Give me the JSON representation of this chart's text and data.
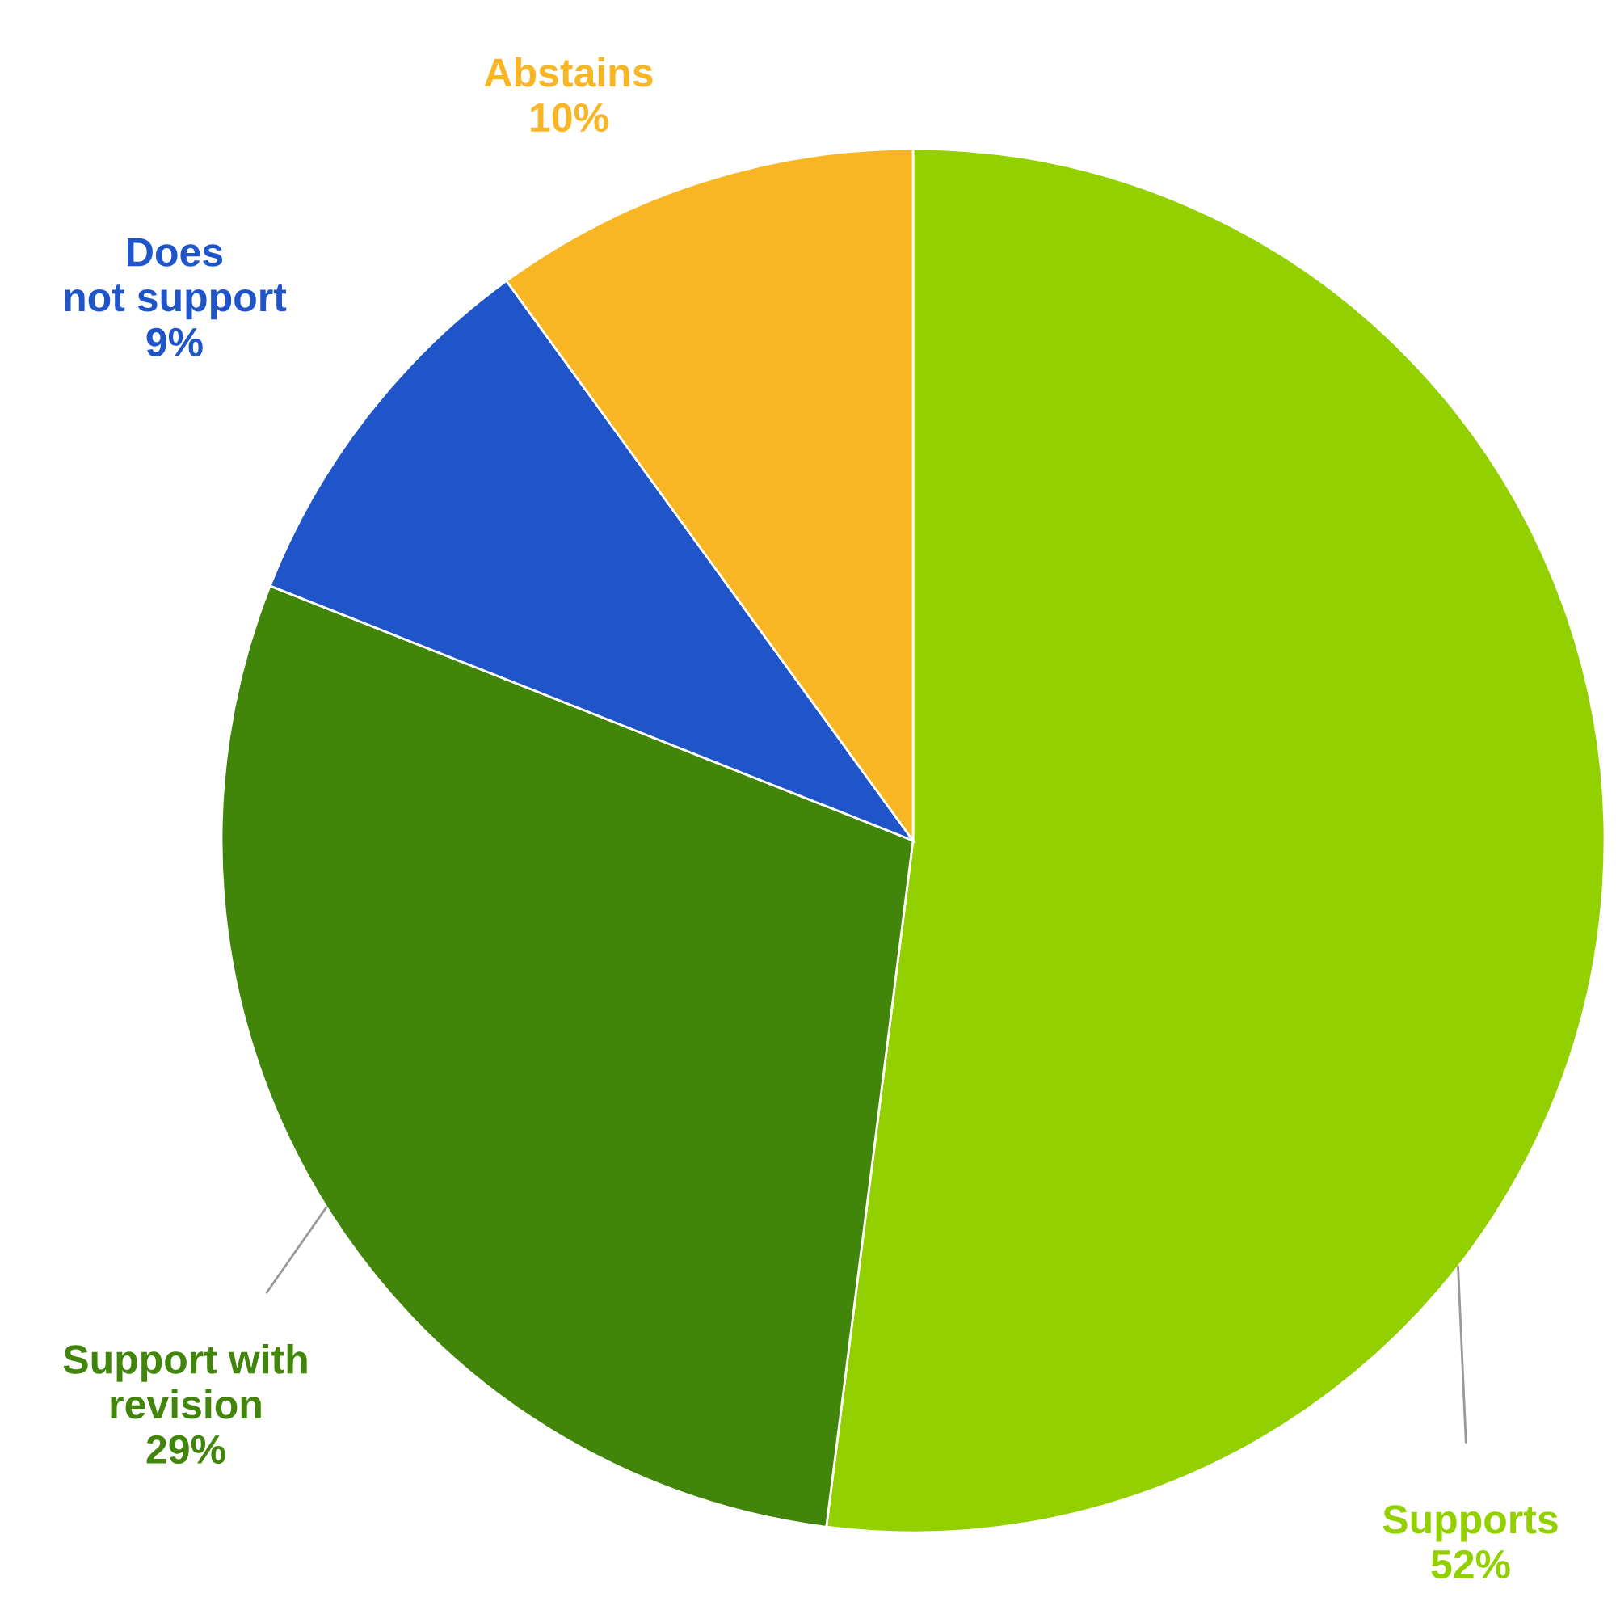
{
  "chart_data": {
    "type": "pie",
    "categories": [
      "Supports",
      "Support with\nrevision",
      "Does\nnot support",
      "Abstains"
    ],
    "values": [
      52,
      29,
      9,
      10
    ],
    "value_labels": [
      "52%",
      "29%",
      "9%",
      "10%"
    ],
    "colors": [
      "#92d000",
      "#41850a",
      "#1f55c9",
      "#f9b624"
    ],
    "legend": false
  }
}
